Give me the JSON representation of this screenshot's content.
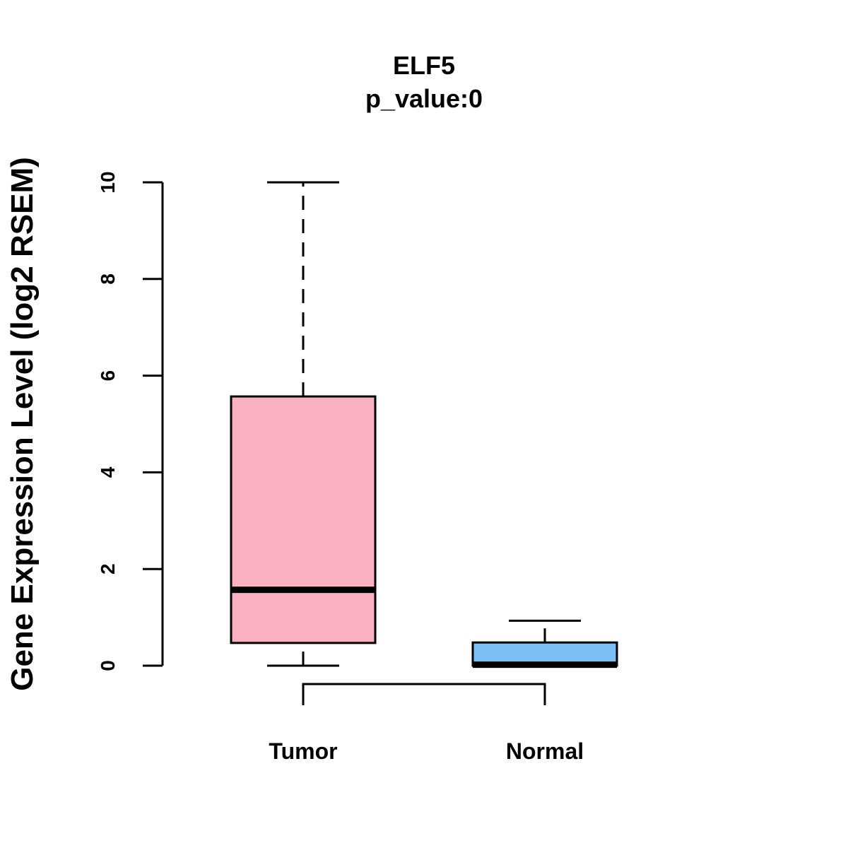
{
  "chart_data": {
    "type": "box",
    "title": "ELF5",
    "subtitle": "p_value:0",
    "xlabel": "",
    "ylabel": "Gene Expression Level (log2 RSEM)",
    "ylim": [
      0,
      10
    ],
    "yticks": [
      0,
      2,
      4,
      6,
      8,
      10
    ],
    "categories": [
      "Tumor",
      "Normal"
    ],
    "boxes": [
      {
        "category": "Tumor",
        "min": 0,
        "q1": 0.47,
        "median": 1.57,
        "q3": 5.57,
        "max": 10,
        "color": "#FBB1C1"
      },
      {
        "category": "Normal",
        "min": 0,
        "q1": 0,
        "median": 0.02,
        "q3": 0.48,
        "max": 0.93,
        "color": "#7BBFF5"
      }
    ],
    "comparison_bracket": {
      "from": "Tumor",
      "to": "Normal"
    },
    "grid": false,
    "legend": "none"
  }
}
